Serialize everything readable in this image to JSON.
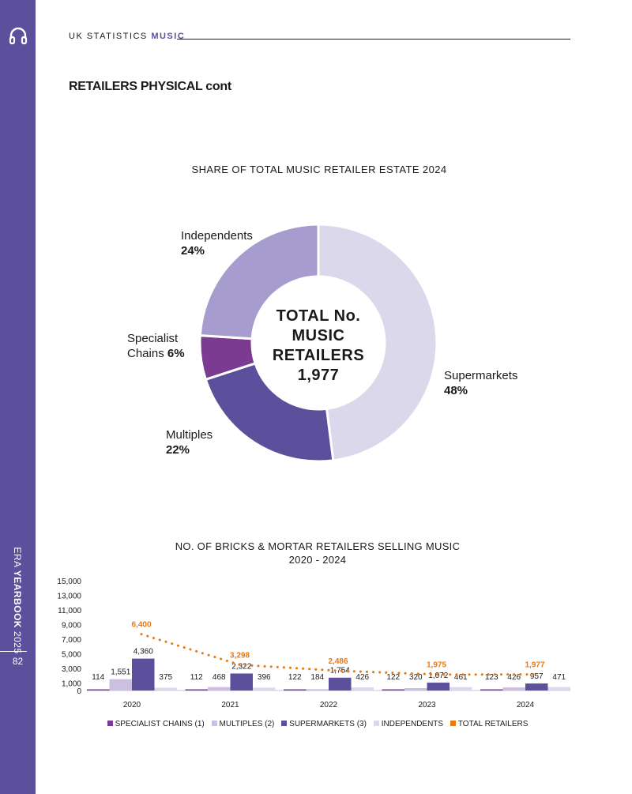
{
  "sidebar": {
    "era": "ERA",
    "yearbook": "YEARBOOK",
    "year": "2025",
    "page_number": "82"
  },
  "header": {
    "prefix": "UK STATISTICS",
    "accent": "MUSIC"
  },
  "section_title": "RETAILERS PHYSICAL cont",
  "colors": {
    "brand": "#5c4f9c",
    "specialist": "#7b3b91",
    "multiples": "#cdbfdf",
    "supermarkets": "#5c4f9c",
    "independents": "#dcd8ec",
    "independents_donut": "#a69ccd",
    "supermarkets_donut": "#dcd8ec",
    "total": "#e8790f"
  },
  "chart_data": [
    {
      "type": "pie",
      "title": "SHARE OF TOTAL MUSIC RETAILER ESTATE 2024",
      "center_text": [
        "TOTAL No.",
        "MUSIC",
        "RETAILERS",
        "1,977"
      ],
      "slices": [
        {
          "label": "Supermarkets",
          "value": 48,
          "pct_label": "48%"
        },
        {
          "label": "Multiples",
          "value": 22,
          "pct_label": "22%"
        },
        {
          "label": "Specialist Chains",
          "label_lines": [
            "Specialist",
            "Chains"
          ],
          "value": 6,
          "pct_label": "6%"
        },
        {
          "label": "Independents",
          "value": 24,
          "pct_label": "24%"
        }
      ]
    },
    {
      "type": "bar",
      "title": "NO. OF BRICKS & MORTAR RETAILERS SELLING MUSIC",
      "subtitle": "2020 - 2024",
      "categories": [
        "2020",
        "2021",
        "2022",
        "2023",
        "2024"
      ],
      "ylim": [
        0,
        15000
      ],
      "yticks": [
        0,
        1000,
        3000,
        5000,
        7000,
        9000,
        11000,
        13000,
        15000
      ],
      "ytick_labels": [
        "0",
        "1,000",
        "3,000",
        "5,000",
        "7,000",
        "9,000",
        "11,000",
        "13,000",
        "15,000"
      ],
      "series": [
        {
          "name": "SPECIALIST CHAINS (1)",
          "values": [
            114,
            112,
            122,
            122,
            123
          ],
          "labels": [
            "114",
            "112",
            "122",
            "122",
            "123"
          ]
        },
        {
          "name": "MULTIPLES (2)",
          "values": [
            1551,
            468,
            184,
            320,
            426
          ],
          "labels": [
            "1,551",
            "468",
            "184",
            "320",
            "426"
          ]
        },
        {
          "name": "SUPERMARKETS (3)",
          "values": [
            4360,
            2322,
            1754,
            1072,
            957
          ],
          "labels": [
            "4,360",
            "2,322",
            "1,754",
            "1,072",
            "957"
          ]
        },
        {
          "name": "INDEPENDENTS",
          "values": [
            375,
            396,
            426,
            461,
            471
          ],
          "labels": [
            "375",
            "396",
            "426",
            "461",
            "471"
          ]
        }
      ],
      "line_series": {
        "name": "TOTAL RETAILERS",
        "values": [
          6400,
          3298,
          2486,
          1975,
          1977
        ],
        "labels": [
          "6,400",
          "3,298",
          "2,486",
          "1,975",
          "1,977"
        ]
      }
    }
  ]
}
